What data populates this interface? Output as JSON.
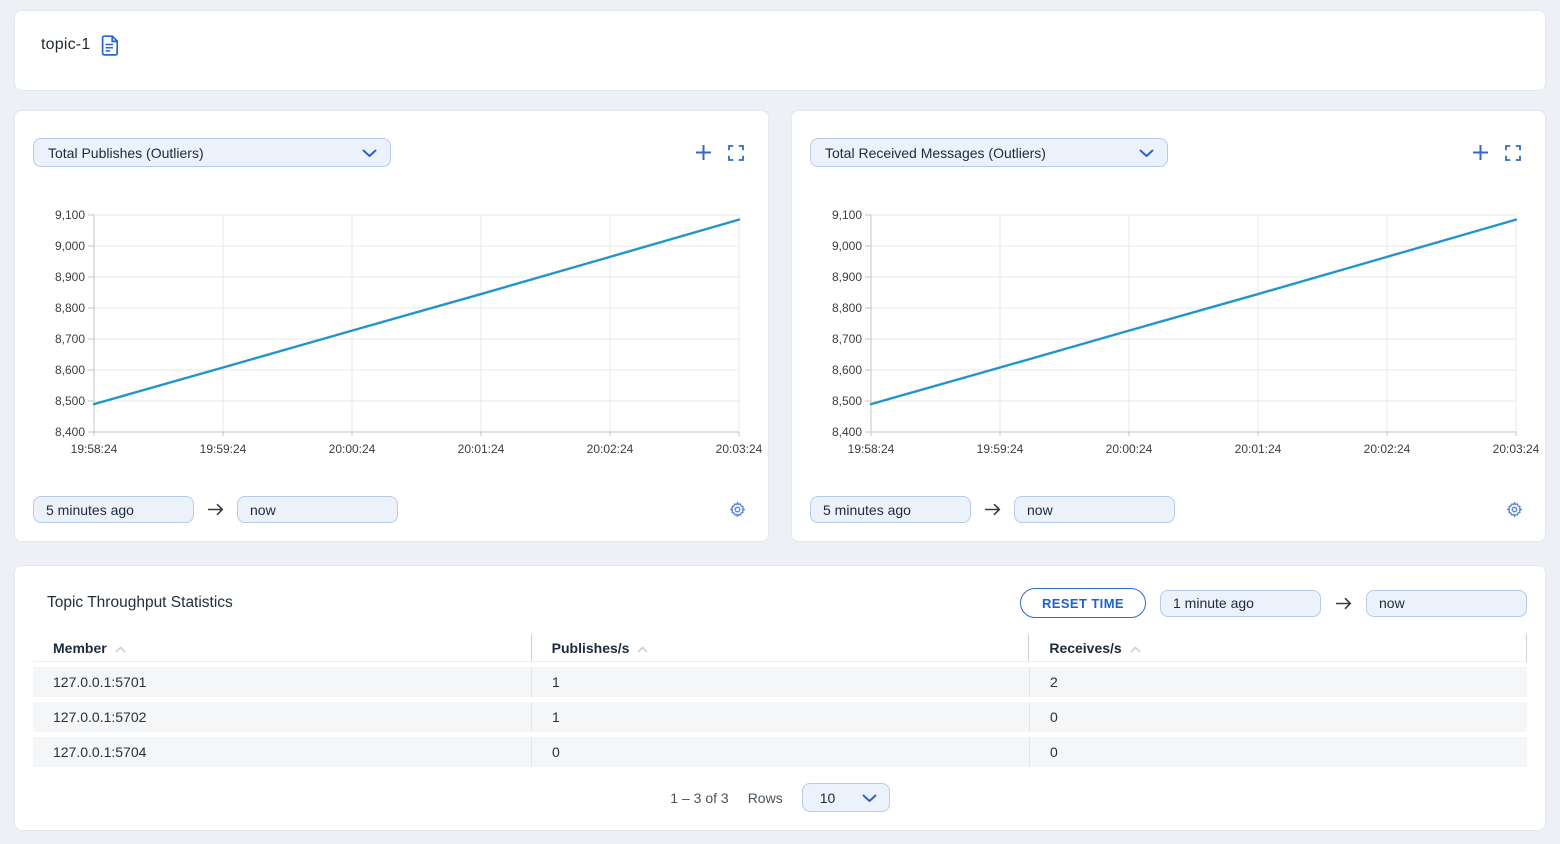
{
  "header": {
    "title": "topic-1"
  },
  "chart_cards": [
    {
      "metric_select": "Total Publishes (Outliers)",
      "time_from": "5 minutes ago",
      "time_to": "now"
    },
    {
      "metric_select": "Total Received Messages (Outliers)",
      "time_from": "5 minutes ago",
      "time_to": "now"
    }
  ],
  "chart_data": [
    {
      "type": "line",
      "title": "Total Publishes (Outliers)",
      "x": [
        "19:58:24",
        "19:59:24",
        "20:00:24",
        "20:01:24",
        "20:02:24",
        "20:03:24"
      ],
      "values": [
        8490,
        8608,
        8727,
        8845,
        8965,
        9085
      ],
      "ylim": [
        8400,
        9100
      ],
      "yticks": [
        8400,
        8500,
        8600,
        8700,
        8800,
        8900,
        9000,
        9100
      ],
      "xlabel": "",
      "ylabel": "",
      "grid": true,
      "legend_position": "none",
      "line_color": "#2196c7"
    },
    {
      "type": "line",
      "title": "Total Received Messages (Outliers)",
      "x": [
        "19:58:24",
        "19:59:24",
        "20:00:24",
        "20:01:24",
        "20:02:24",
        "20:03:24"
      ],
      "values": [
        8490,
        8608,
        8727,
        8845,
        8965,
        9085
      ],
      "ylim": [
        8400,
        9100
      ],
      "yticks": [
        8400,
        8500,
        8600,
        8700,
        8800,
        8900,
        9000,
        9100
      ],
      "xlabel": "",
      "ylabel": "",
      "grid": true,
      "legend_position": "none",
      "line_color": "#2196c7"
    }
  ],
  "stats_card": {
    "title": "Topic Throughput Statistics",
    "reset_time_button": "RESET TIME",
    "time_from": "1 minute ago",
    "time_to": "now",
    "table": {
      "columns": [
        "Member",
        "Publishes/s",
        "Receives/s"
      ],
      "rows": [
        [
          "127.0.0.1:5701",
          "1",
          "2"
        ],
        [
          "127.0.0.1:5702",
          "1",
          "0"
        ],
        [
          "127.0.0.1:5704",
          "0",
          "0"
        ]
      ]
    },
    "pagination": {
      "range_text": "1 – 3 of 3",
      "rows_label": "Rows",
      "page_size": "10"
    }
  },
  "colors": {
    "accent_blue": "#2e6bc8",
    "line_blue": "#2196c7",
    "input_bg": "#ecf2fb",
    "input_border": "#b5cbe7",
    "row_bg": "#f5f6f8"
  }
}
